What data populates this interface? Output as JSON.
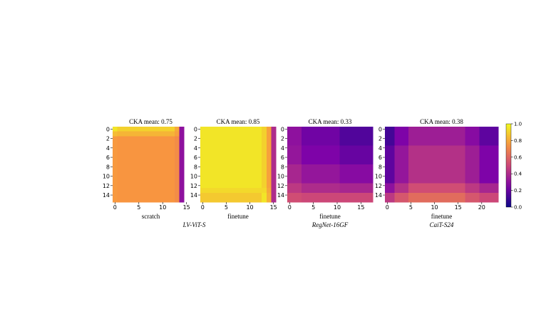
{
  "colors": {
    "low": "#0d0887",
    "mid": "#cc4778",
    "high": "#f0f921"
  },
  "chart_data": [
    {
      "type": "heatmap",
      "title": "CKA mean: 0.75",
      "xlabel": "scratch",
      "caption": "",
      "n_rows": 16,
      "n_cols": 16,
      "x_ticks": [
        0,
        5,
        10,
        15
      ],
      "y_ticks": [
        0,
        2,
        4,
        6,
        8,
        10,
        12,
        14
      ],
      "blocks": {
        "cols": [
          0,
          1,
          13,
          14,
          15
        ],
        "rows": [
          0,
          1,
          2,
          16
        ]
      },
      "block_values": [
        [
          0.95,
          0.9,
          0.8,
          0.3
        ],
        [
          0.85,
          0.83,
          0.78,
          0.3
        ],
        [
          0.76,
          0.75,
          0.72,
          0.3
        ]
      ]
    },
    {
      "type": "heatmap",
      "title": "CKA mean: 0.85",
      "xlabel": "finetune",
      "caption": "LV-ViT-S",
      "n_rows": 16,
      "n_cols": 16,
      "x_ticks": [
        0,
        5,
        10,
        15
      ],
      "y_ticks": [
        0,
        2,
        4,
        6,
        8,
        10,
        12,
        14
      ],
      "blocks": {
        "cols": [
          0,
          13,
          14,
          15,
          16
        ],
        "rows": [
          0,
          13,
          14,
          16
        ]
      },
      "block_values": [
        [
          0.95,
          0.9,
          0.78,
          0.4
        ],
        [
          0.92,
          0.92,
          0.8,
          0.4
        ],
        [
          0.88,
          0.95,
          0.82,
          0.4
        ]
      ]
    },
    {
      "type": "heatmap",
      "title": "CKA mean: 0.33",
      "xlabel": "finetune",
      "caption": "RegNet-16GF",
      "n_rows": 16,
      "n_cols": 18,
      "x_ticks": [
        0,
        5,
        10,
        15
      ],
      "y_ticks": [
        0,
        2,
        4,
        6,
        8,
        10,
        12,
        14
      ],
      "blocks": {
        "cols": [
          0,
          3,
          11,
          18
        ],
        "rows": [
          0,
          4,
          8,
          12,
          14,
          16
        ]
      },
      "block_values": [
        [
          0.3,
          0.22,
          0.15
        ],
        [
          0.32,
          0.25,
          0.2
        ],
        [
          0.38,
          0.32,
          0.28
        ],
        [
          0.45,
          0.4,
          0.38
        ],
        [
          0.52,
          0.5,
          0.5
        ]
      ]
    },
    {
      "type": "heatmap",
      "title": "CKA mean: 0.38",
      "xlabel": "finetune",
      "caption": "CaiT-S24",
      "n_rows": 16,
      "n_cols": 24,
      "x_ticks": [
        0,
        5,
        10,
        15,
        20
      ],
      "y_ticks": [
        0,
        2,
        4,
        6,
        8,
        10,
        12,
        14
      ],
      "blocks": {
        "cols": [
          0,
          2,
          5,
          17,
          20,
          24
        ],
        "rows": [
          0,
          4,
          12,
          14,
          16
        ]
      },
      "block_values": [
        [
          0.12,
          0.25,
          0.35,
          0.28,
          0.18
        ],
        [
          0.18,
          0.32,
          0.42,
          0.35,
          0.25
        ],
        [
          0.3,
          0.42,
          0.52,
          0.45,
          0.38
        ],
        [
          0.45,
          0.55,
          0.62,
          0.55,
          0.5
        ]
      ]
    }
  ],
  "colorbar": {
    "min": 0.0,
    "max": 1.0,
    "ticks": [
      "0.0",
      "0.2",
      "0.4",
      "0.6",
      "0.8",
      "1.0"
    ]
  }
}
